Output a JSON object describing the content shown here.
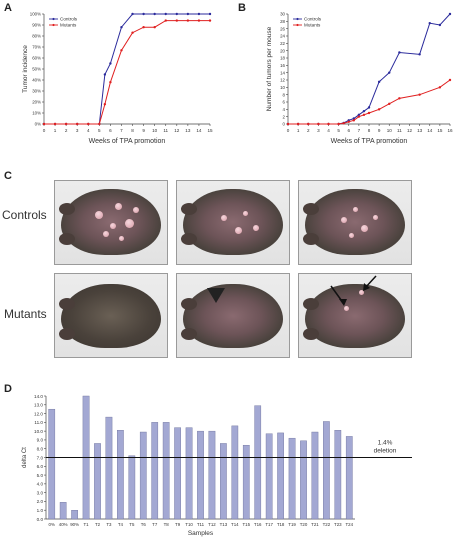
{
  "panels": {
    "a": {
      "letter": "A"
    },
    "b": {
      "letter": "B"
    },
    "c": {
      "letter": "C",
      "row_labels": [
        "Controls",
        "Mutants"
      ]
    },
    "d": {
      "letter": "D"
    }
  },
  "colors": {
    "controls": "#2b2b9c",
    "mutants": "#e02020",
    "bars": "#a3a8d3",
    "bar_edge": "#6b6f99"
  },
  "chart_data": [
    {
      "type": "line",
      "title": "",
      "xlabel": "Weeks of TPA promotion",
      "ylabel": "Tumor incidence",
      "xlim": [
        0,
        15
      ],
      "ylim": [
        0,
        100
      ],
      "x_ticks": [
        "0",
        "1",
        "2",
        "3",
        "4",
        "5",
        "6",
        "7",
        "8",
        "9",
        "10",
        "11",
        "12",
        "13",
        "14",
        "15"
      ],
      "y_ticks": [
        "0%",
        "10%",
        "20%",
        "30%",
        "40%",
        "50%",
        "60%",
        "70%",
        "80%",
        "90%",
        "100%"
      ],
      "legend": [
        "Controls",
        "Mutants"
      ],
      "legend_position": "top-left",
      "series": [
        {
          "name": "Controls",
          "x": [
            0,
            1,
            2,
            3,
            4,
            5,
            5.5,
            6,
            7,
            8,
            9,
            10,
            11,
            12,
            13,
            14,
            15
          ],
          "y": [
            0,
            0,
            0,
            0,
            0,
            0,
            45,
            55,
            88,
            100,
            100,
            100,
            100,
            100,
            100,
            100,
            100
          ]
        },
        {
          "name": "Mutants",
          "x": [
            0,
            1,
            2,
            3,
            4,
            5,
            5.5,
            6,
            7,
            8,
            9,
            10,
            11,
            12,
            13,
            14,
            15
          ],
          "y": [
            0,
            0,
            0,
            0,
            0,
            0,
            18,
            38,
            67,
            83,
            88,
            88,
            94,
            94,
            94,
            94,
            94
          ]
        }
      ]
    },
    {
      "type": "line",
      "title": "",
      "xlabel": "Weeks of TPA promotion",
      "ylabel": "Number of tumors per mouse",
      "xlim": [
        0,
        16
      ],
      "ylim": [
        0,
        30
      ],
      "x_ticks": [
        "0",
        "1",
        "2",
        "3",
        "4",
        "5",
        "6",
        "7",
        "8",
        "9",
        "10",
        "11",
        "12",
        "13",
        "14",
        "15",
        "16"
      ],
      "y_ticks": [
        "0",
        "2",
        "4",
        "6",
        "8",
        "10",
        "12",
        "14",
        "16",
        "18",
        "20",
        "22",
        "24",
        "26",
        "28",
        "30"
      ],
      "legend": [
        "Controls",
        "Mutants"
      ],
      "legend_position": "top-left",
      "series": [
        {
          "name": "Controls",
          "x": [
            0,
            1,
            2,
            3,
            4,
            5,
            5.5,
            6,
            6.5,
            7,
            7.5,
            8,
            9,
            10,
            11,
            13,
            14,
            15,
            16
          ],
          "y": [
            0,
            0,
            0,
            0,
            0,
            0,
            0.3,
            1,
            1.5,
            2.5,
            3.5,
            4.5,
            11.5,
            14,
            19.5,
            19,
            27.5,
            27,
            30
          ]
        },
        {
          "name": "Mutants",
          "x": [
            0,
            1,
            2,
            3,
            4,
            5,
            5.5,
            6,
            6.5,
            7,
            7.5,
            8,
            9,
            10,
            11,
            13,
            15,
            16
          ],
          "y": [
            0,
            0,
            0,
            0,
            0,
            0,
            0.2,
            0.6,
            1,
            2,
            2.5,
            3,
            4,
            5.5,
            7,
            8,
            10,
            12
          ]
        }
      ]
    },
    {
      "type": "bar",
      "title": "",
      "xlabel": "Samples",
      "ylabel": "delta Ct",
      "ylim": [
        0,
        14
      ],
      "y_ticks": [
        "0.0",
        "1.0",
        "2.0",
        "3.0",
        "4.0",
        "5.0",
        "6.0",
        "7.0",
        "8.0",
        "9.0",
        "10.0",
        "11.0",
        "12.0",
        "13.0",
        "14.0"
      ],
      "categories": [
        "0%",
        "40%",
        "90%",
        "T1",
        "T2",
        "T3",
        "T4",
        "T5",
        "T6",
        "T7",
        "T8",
        "T9",
        "T10",
        "T11",
        "T12",
        "T13",
        "T14",
        "T15",
        "T16",
        "T17",
        "T18",
        "T19",
        "T20",
        "T21",
        "T22",
        "T23",
        "T24"
      ],
      "values": [
        12.5,
        1.9,
        1.0,
        14.0,
        8.6,
        11.6,
        10.1,
        7.2,
        9.9,
        11.0,
        11.0,
        10.4,
        10.4,
        10.0,
        10.0,
        8.6,
        10.6,
        8.4,
        12.9,
        9.7,
        9.8,
        9.2,
        8.9,
        9.9,
        11.1,
        10.1,
        9.4
      ],
      "reference_line": {
        "value": 7.0,
        "label_lines": [
          "1.4%",
          "deletion"
        ]
      }
    }
  ]
}
